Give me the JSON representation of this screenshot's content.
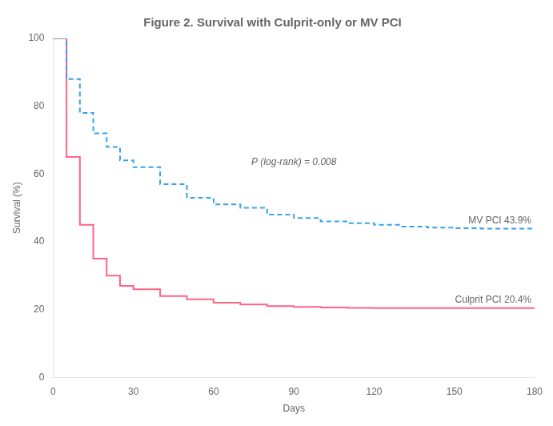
{
  "chart_data": {
    "type": "line",
    "title": "Figure 2. Survival with Culprit-only or MV PCI",
    "x_label": "Days",
    "y_label": "Survival (%)",
    "x": [
      0,
      5,
      10,
      15,
      20,
      25,
      30,
      40,
      50,
      60,
      70,
      80,
      90,
      100,
      110,
      120,
      130,
      140,
      150,
      160,
      170,
      180
    ],
    "series": [
      {
        "name": "MV PCI 43.9%",
        "line_style": "dashed",
        "values": [
          100,
          88,
          78,
          72,
          68,
          64,
          62,
          57,
          53,
          51,
          50,
          48,
          47,
          46,
          45.5,
          45,
          44.5,
          44.2,
          44.0,
          43.9,
          43.9,
          43.9
        ]
      },
      {
        "name": "Culprit PCI 20.4%",
        "line_style": "solid",
        "values": [
          100,
          65,
          45,
          35,
          30,
          27,
          26,
          24,
          23,
          22,
          21.5,
          21,
          20.8,
          20.6,
          20.5,
          20.4,
          20.4,
          20.4,
          20.4,
          20.4,
          20.4,
          20.4
        ]
      }
    ],
    "annotations": [
      {
        "text": "P (log-rank) = 0.008",
        "x": 90,
        "y": 62
      }
    ],
    "xlim": [
      0,
      180
    ],
    "xticks": [
      0,
      30,
      60,
      90,
      120,
      150,
      180
    ],
    "ylim": [
      0,
      100
    ],
    "yticks": [
      0,
      20,
      40,
      60,
      80,
      100
    ],
    "grid": false
  }
}
